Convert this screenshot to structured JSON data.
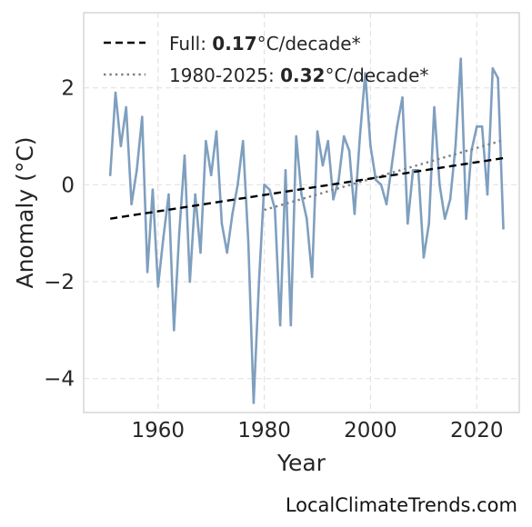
{
  "chart_data": {
    "type": "line",
    "title": "",
    "xlabel": "Year",
    "ylabel": "Anomaly (°C)",
    "xlim": [
      1946,
      2028
    ],
    "ylim": [
      -4.7,
      3.55
    ],
    "xticks": [
      1960,
      1980,
      2000,
      2020
    ],
    "yticks": [
      -4,
      -2,
      0,
      2
    ],
    "ytick_labels": [
      "−4",
      "−2",
      "0",
      "2"
    ],
    "grid": true,
    "legend_position": "top-left",
    "colors": {
      "series": "#7f9fbf",
      "full_trend": "#000000",
      "recent_trend": "#808080"
    },
    "series": [
      {
        "x": [
          1951,
          1952,
          1953,
          1954,
          1955,
          1956,
          1957,
          1958,
          1959,
          1960,
          1961,
          1962,
          1963,
          1964,
          1965,
          1966,
          1967,
          1968,
          1969,
          1970,
          1971,
          1972,
          1973,
          1974,
          1975,
          1976,
          1977,
          1978,
          1979,
          1980,
          1981,
          1982,
          1983,
          1984,
          1985,
          1986,
          1987,
          1988,
          1989,
          1990,
          1991,
          1992,
          1993,
          1994,
          1995,
          1996,
          1997,
          1998,
          1999,
          2000,
          2001,
          2002,
          2003,
          2004,
          2005,
          2006,
          2007,
          2008,
          2009,
          2010,
          2011,
          2012,
          2013,
          2014,
          2015,
          2016,
          2017,
          2018,
          2019,
          2020,
          2021,
          2022,
          2023,
          2024,
          2025
        ],
        "y": [
          0.2,
          1.9,
          0.8,
          1.6,
          -0.4,
          0.3,
          1.4,
          -1.8,
          -0.1,
          -2.1,
          -1.1,
          -0.2,
          -3.0,
          -1.0,
          0.6,
          -2.0,
          -0.2,
          -1.4,
          0.9,
          0.2,
          1.1,
          -0.8,
          -1.4,
          -0.6,
          0.0,
          0.9,
          -1.2,
          -4.5,
          -2.0,
          0.0,
          -0.1,
          -0.5,
          -2.9,
          0.3,
          -2.9,
          1.0,
          -0.2,
          -0.7,
          -1.9,
          1.1,
          0.4,
          0.9,
          -0.3,
          0.1,
          1.0,
          0.7,
          -0.6,
          1.0,
          2.3,
          0.8,
          0.1,
          0.0,
          -0.4,
          0.4,
          1.2,
          1.8,
          -0.8,
          0.3,
          0.3,
          -1.5,
          -0.8,
          1.6,
          0.0,
          -0.7,
          -0.3,
          0.8,
          2.6,
          -0.7,
          0.7,
          1.2,
          1.2,
          -0.2,
          2.4,
          2.2,
          -0.9
        ]
      }
    ],
    "trend_lines": [
      {
        "name": "Full",
        "rate": "0.17",
        "unit": "°C/decade*",
        "x": [
          1951,
          2025
        ],
        "y": [
          -0.7,
          0.55
        ]
      },
      {
        "name": "1980-2025",
        "rate": "0.32",
        "unit": "°C/decade*",
        "x": [
          1980,
          2025
        ],
        "y": [
          -0.52,
          0.92
        ]
      }
    ]
  },
  "legend": {
    "full_prefix": "Full: ",
    "full_value": "0.17",
    "full_suffix": "°C/decade*",
    "recent_prefix": "1980-2025: ",
    "recent_value": "0.32",
    "recent_suffix": "°C/decade*"
  },
  "watermark": "LocalClimateTrends.com"
}
